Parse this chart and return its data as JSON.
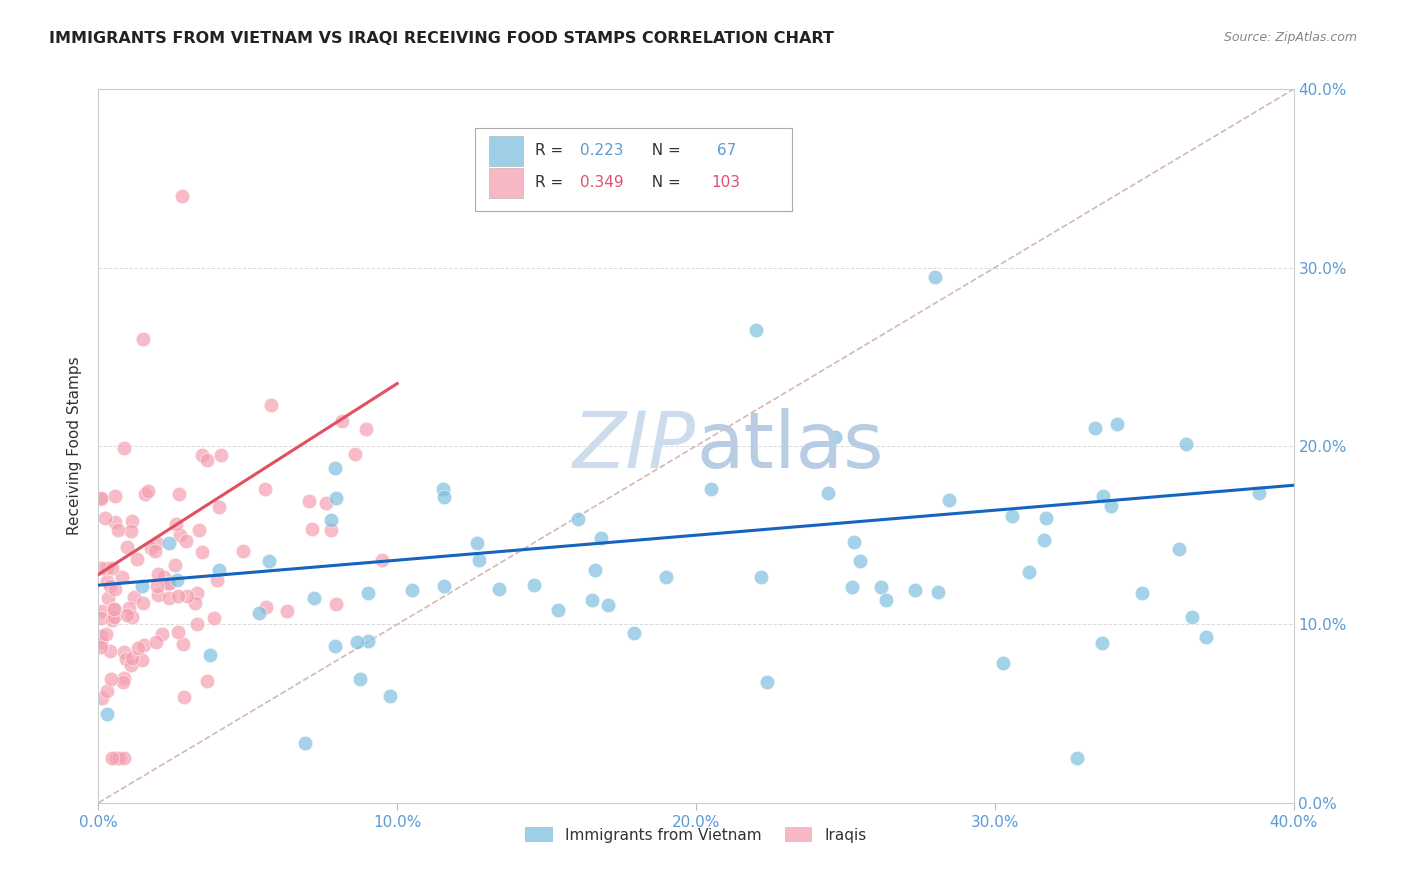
{
  "title": "IMMIGRANTS FROM VIETNAM VS IRAQI RECEIVING FOOD STAMPS CORRELATION CHART",
  "source": "Source: ZipAtlas.com",
  "ylabel": "Receiving Food Stamps",
  "xlim": [
    0,
    0.4
  ],
  "ylim": [
    0,
    0.4
  ],
  "xticks": [
    0.0,
    0.1,
    0.2,
    0.3,
    0.4
  ],
  "yticks": [
    0.0,
    0.1,
    0.2,
    0.3,
    0.4
  ],
  "xtick_labels": [
    "0.0%",
    "10.0%",
    "20.0%",
    "30.0%",
    "40.0%"
  ],
  "ytick_labels": [
    "0.0%",
    "10.0%",
    "20.0%",
    "30.0%",
    "40.0%"
  ],
  "blue_R": 0.223,
  "blue_N": 67,
  "pink_R": 0.349,
  "pink_N": 103,
  "blue_color": "#7fbfdf",
  "pink_color": "#f4a0b0",
  "trend_blue": "#1565c0",
  "trend_pink": "#e05060",
  "ref_line_color": "#d0b0b0",
  "watermark_color": "#ccdcee",
  "legend_label_blue": "Immigrants from Vietnam",
  "legend_label_pink": "Iraqis",
  "legend_R_color": "#5b9bd5",
  "legend_pink_R_color": "#e05070",
  "axis_color": "#5b9bd5",
  "grid_color": "#d8d8d8"
}
